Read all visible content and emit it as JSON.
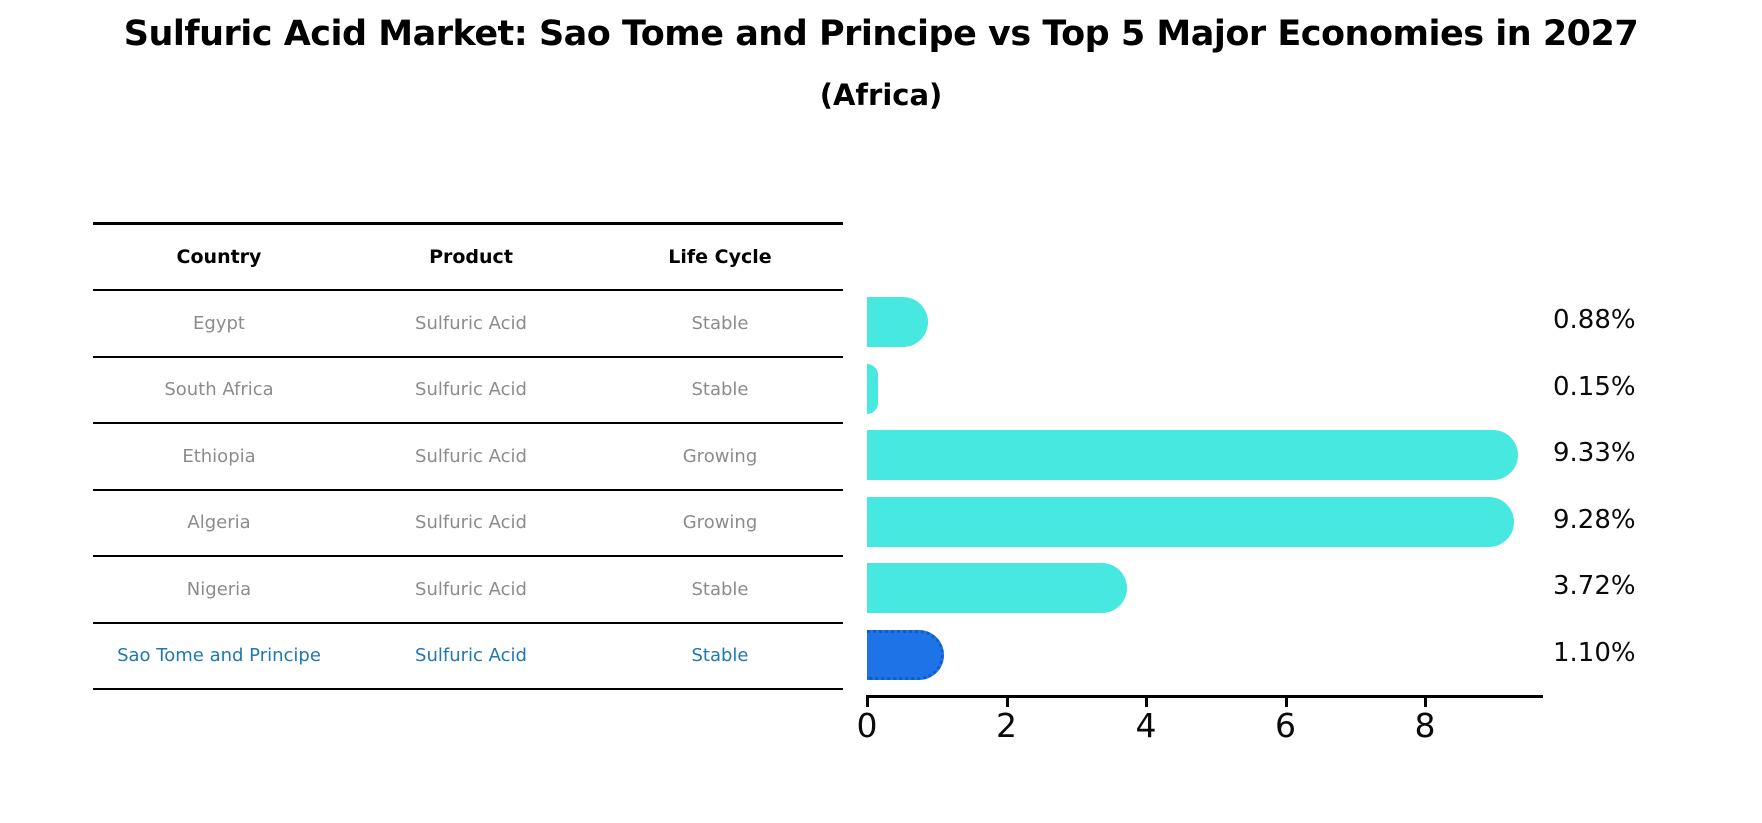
{
  "header": {
    "title": "Sulfuric Acid Market: Sao Tome and Principe vs Top 5 Major Economies in 2027",
    "subtitle": "(Africa)"
  },
  "table": {
    "columns": [
      "Country",
      "Product",
      "Life Cycle"
    ],
    "rows": [
      {
        "country": "Egypt",
        "product": "Sulfuric Acid",
        "life_cycle": "Stable",
        "highlighted": false
      },
      {
        "country": "South Africa",
        "product": "Sulfuric Acid",
        "life_cycle": "Stable",
        "highlighted": false
      },
      {
        "country": "Ethiopia",
        "product": "Sulfuric Acid",
        "life_cycle": "Growing",
        "highlighted": false
      },
      {
        "country": "Algeria",
        "product": "Sulfuric Acid",
        "life_cycle": "Growing",
        "highlighted": false
      },
      {
        "country": "Nigeria",
        "product": "Sulfuric Acid",
        "life_cycle": "Stable",
        "highlighted": false
      },
      {
        "country": "Sao Tome and Principe",
        "product": "Sulfuric Acid",
        "life_cycle": "Stable",
        "highlighted": true
      }
    ]
  },
  "chart_data": {
    "type": "bar",
    "orientation": "horizontal",
    "title": "Sulfuric Acid Market: Sao Tome and Principe vs Top 5 Major Economies in 2027",
    "subtitle": "(Africa)",
    "categories": [
      "Egypt",
      "South Africa",
      "Ethiopia",
      "Algeria",
      "Nigeria",
      "Sao Tome and Principe"
    ],
    "values": [
      0.88,
      0.15,
      9.33,
      9.28,
      3.72,
      1.1
    ],
    "value_labels": [
      "0.88%",
      "0.15%",
      "9.33%",
      "9.28%",
      "3.72%",
      "1.10%"
    ],
    "xlabel": "",
    "ylabel": "",
    "xlim": [
      0,
      9.7
    ],
    "x_ticks": [
      0,
      2,
      4,
      6,
      8
    ],
    "grid": false,
    "legend": false,
    "bar_color": "#47e8e0",
    "highlight_bar_color": "#1e73e6",
    "highlight_border_color": "#0f5ccb",
    "highlight_text_color": "#1f77b4",
    "highlight_index": 5
  },
  "x_axis": {
    "ticks": [
      "0",
      "2",
      "4",
      "6",
      "8"
    ]
  }
}
